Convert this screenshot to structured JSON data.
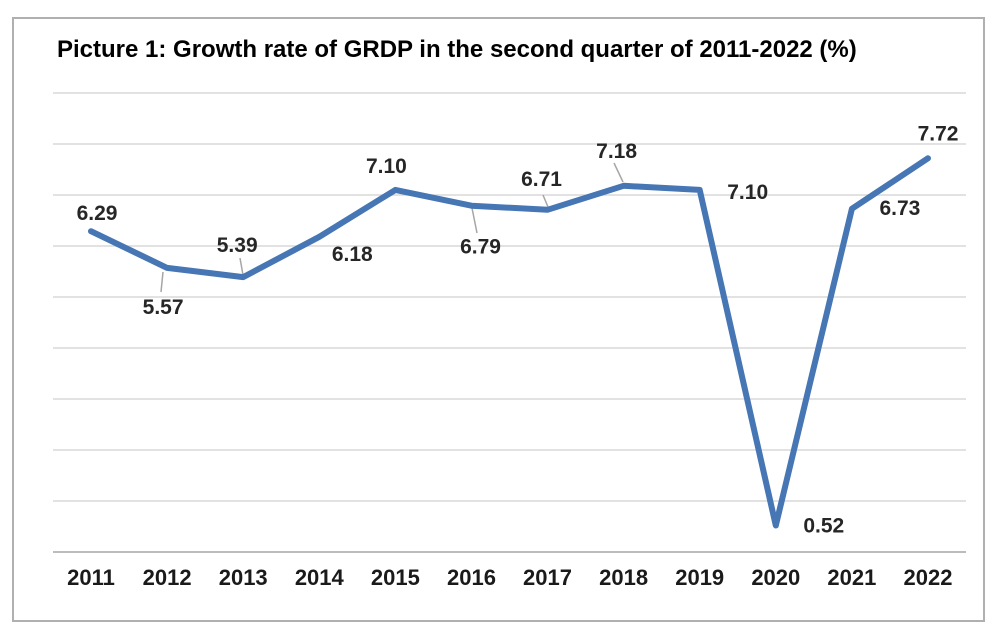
{
  "figure": {
    "title": "Picture 1: Growth rate of GRDP in the second quarter of 2011-2022 (%)"
  },
  "chart_data": {
    "type": "line",
    "title": "Picture 1: Growth rate of GRDP in the second quarter of 2011-2022 (%)",
    "categories": [
      "2011",
      "2012",
      "2013",
      "2014",
      "2015",
      "2016",
      "2017",
      "2018",
      "2019",
      "2020",
      "2021",
      "2022"
    ],
    "series": [
      {
        "name": "Growth rate of GRDP in the second quarter (%)",
        "values": [
          6.29,
          5.57,
          5.39,
          6.18,
          7.1,
          6.79,
          6.71,
          7.18,
          7.1,
          0.52,
          6.73,
          7.72
        ]
      }
    ],
    "data_labels": [
      "6.29",
      "5.57",
      "5.39",
      "6.18",
      "7.10",
      "6.79",
      "6.71",
      "7.18",
      "7.10",
      "0.52",
      "6.73",
      "7.72"
    ],
    "xlabel": "",
    "ylabel": "",
    "ylim": [
      0,
      9
    ],
    "ygrid_step": 1,
    "grid": true,
    "legend_position": "none",
    "colors": {
      "line": "#4676b4",
      "grid": "#d9d9d9",
      "axis": "#bcbcbc",
      "leader": "#a6a6a6",
      "data_label": "#262626",
      "tick_label": "#1a1a1a",
      "frame_border": "#b0b0b0"
    }
  }
}
